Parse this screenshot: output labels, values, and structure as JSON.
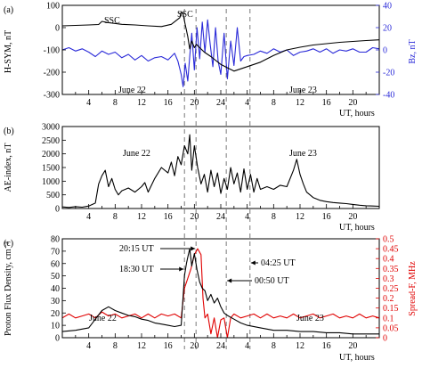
{
  "chart_data": [
    {
      "panel_label": "(a)",
      "type": "line",
      "xlabel": "UT, hours",
      "ylabel": "H-SYM, nT",
      "y2label": "Bz, nT",
      "xlim": [
        0,
        48
      ],
      "ylim": [
        -300,
        100
      ],
      "y2lim": [
        -40,
        40
      ],
      "x_tick_labels": [
        "4",
        "8",
        "12",
        "16",
        "20",
        "24",
        "4",
        "8",
        "12",
        "16",
        "20"
      ],
      "y_tick_labels": [
        "100",
        "0",
        "-100",
        "-200",
        "-300"
      ],
      "y2_tick_labels": [
        "40",
        "20",
        "0",
        "-20",
        "-40"
      ],
      "day_labels": [
        "June 22",
        "June 23"
      ],
      "annotations": [
        {
          "text": "SSC",
          "x": 5.6,
          "y": 24
        },
        {
          "text": "SSC",
          "x": 17.9,
          "y": 64
        }
      ],
      "series": [
        {
          "axis": "left",
          "color": "#000000",
          "x": [
            0,
            2,
            4,
            5.5,
            6,
            7,
            9,
            11,
            13,
            15,
            16.5,
            17.8,
            18,
            18.3,
            18.6,
            19,
            19.3,
            19.6,
            20,
            20.3,
            20.8,
            21.5,
            22.5,
            24,
            26,
            28,
            30,
            32,
            34,
            36,
            38,
            40,
            42,
            44,
            46,
            48
          ],
          "y": [
            8,
            10,
            12,
            14,
            28,
            22,
            15,
            12,
            8,
            5,
            15,
            45,
            70,
            60,
            15,
            -40,
            -95,
            -60,
            -90,
            -75,
            -90,
            -110,
            -130,
            -165,
            -195,
            -175,
            -155,
            -125,
            -100,
            -88,
            -78,
            -72,
            -66,
            -62,
            -58,
            -55
          ]
        },
        {
          "axis": "right",
          "color": "#2a2ad8",
          "x": [
            0,
            1,
            2,
            3,
            4,
            5,
            6,
            7,
            8,
            9,
            10,
            11,
            12,
            13,
            14,
            15,
            16,
            17,
            17.5,
            18,
            18.3,
            18.6,
            19,
            19.3,
            19.6,
            20,
            20.4,
            20.8,
            21.2,
            21.6,
            22,
            22.4,
            22.8,
            23.2,
            23.6,
            24,
            24.5,
            25,
            25.5,
            26,
            26.5,
            27,
            27.5,
            28,
            29,
            30,
            31,
            32,
            33,
            34,
            35,
            36,
            37,
            38,
            39,
            40,
            41,
            42,
            43,
            44,
            45,
            46,
            47,
            48
          ],
          "y": [
            0,
            2,
            -1,
            1,
            -2,
            -6,
            -1,
            -4,
            -2,
            -7,
            -4,
            -9,
            -5,
            -10,
            -7,
            -6,
            -9,
            -3,
            -10,
            -22,
            -33,
            -12,
            -28,
            -6,
            15,
            -18,
            20,
            -8,
            25,
            -2,
            27,
            5,
            -15,
            20,
            -10,
            -22,
            15,
            -26,
            8,
            -14,
            20,
            -10,
            -6,
            -5,
            -4,
            -1,
            -3,
            1,
            -2,
            0,
            -5,
            -2,
            -1,
            1,
            -2,
            1,
            -3,
            0,
            -1,
            1,
            -2,
            -2,
            2,
            1
          ]
        }
      ]
    },
    {
      "panel_label": "(b)",
      "type": "line",
      "xlabel": "UT, hours",
      "ylabel": "AE-index, nT",
      "xlim": [
        0,
        48
      ],
      "ylim": [
        0,
        3000
      ],
      "x_tick_labels": [
        "4",
        "8",
        "12",
        "16",
        "20",
        "24",
        "4",
        "8",
        "12",
        "16",
        "20"
      ],
      "y_tick_labels": [
        "3000",
        "2500",
        "2000",
        "1500",
        "1000",
        "500",
        "0"
      ],
      "day_labels": [
        "June 22",
        "June 23"
      ],
      "series": [
        {
          "color": "#000000",
          "x": [
            0,
            1,
            2,
            3,
            4,
            5,
            5.5,
            6,
            6.5,
            7,
            7.5,
            8,
            8.5,
            9,
            10,
            11,
            12,
            12.5,
            13,
            14,
            15,
            16,
            16.5,
            17,
            17.5,
            18,
            18.5,
            19,
            19.3,
            19.6,
            20,
            20.5,
            21,
            21.5,
            22,
            22.5,
            23,
            23.5,
            24,
            24.5,
            25,
            25.5,
            26,
            26.5,
            27,
            27.5,
            28,
            28.5,
            29,
            29.5,
            30,
            31,
            32,
            33,
            34,
            35,
            35.5,
            36,
            36.5,
            37,
            38,
            39,
            40,
            41,
            42,
            43,
            44,
            45,
            46,
            47,
            48
          ],
          "y": [
            60,
            40,
            70,
            50,
            90,
            200,
            900,
            1200,
            1400,
            800,
            1100,
            700,
            500,
            650,
            750,
            600,
            800,
            950,
            600,
            1100,
            1500,
            1300,
            1700,
            1200,
            1900,
            1600,
            2300,
            2000,
            2700,
            1400,
            2300,
            1500,
            900,
            1250,
            600,
            1400,
            800,
            1300,
            550,
            1100,
            700,
            1500,
            900,
            1300,
            600,
            1450,
            700,
            1250,
            600,
            1100,
            700,
            800,
            700,
            850,
            800,
            1400,
            1800,
            1250,
            900,
            600,
            400,
            300,
            250,
            220,
            200,
            180,
            150,
            120,
            100,
            90,
            80
          ]
        }
      ]
    },
    {
      "panel_label": "(c)",
      "type": "line",
      "xlabel": "UT, hours",
      "ylabel": "Proton Flux Density, cm⁻³",
      "y2label": "Spread-F, MHz",
      "xlim": [
        0,
        48
      ],
      "ylim": [
        0,
        80
      ],
      "y2lim": [
        0,
        0.5
      ],
      "x_tick_labels": [
        "4",
        "8",
        "12",
        "16",
        "20",
        "24",
        "4",
        "8",
        "12",
        "16",
        "20"
      ],
      "y_tick_labels": [
        "0",
        "10",
        "20",
        "30",
        "40",
        "50",
        "60",
        "70",
        "80"
      ],
      "y2_tick_labels": [
        "0",
        "0.05",
        "0.1",
        "0.15",
        "0.2",
        "0.25",
        "0.3",
        "0.35",
        "0.4",
        "0.45",
        "0.5"
      ],
      "day_labels": [
        "June 22",
        "June 23"
      ],
      "annotations": [
        {
          "text": "20:15 UT",
          "time": 20.25
        },
        {
          "text": "18:30 UT",
          "time": 18.5
        },
        {
          "text": "04:25 UT",
          "time": 28.42
        },
        {
          "text": "00:50 UT",
          "time": 24.83
        }
      ],
      "series": [
        {
          "axis": "left",
          "color": "#000000",
          "x": [
            0,
            2,
            4,
            5,
            6,
            7,
            8,
            9,
            10,
            11,
            12,
            13,
            14,
            15,
            16,
            17,
            18,
            18.5,
            18.8,
            19,
            19.3,
            19.6,
            20,
            20.4,
            20.8,
            21.2,
            21.6,
            22,
            22.5,
            23,
            23.5,
            24,
            24.5,
            25,
            26,
            27,
            28,
            30,
            32,
            34,
            36,
            38,
            40,
            42,
            44,
            46,
            48
          ],
          "y": [
            5,
            6,
            8,
            15,
            22,
            25,
            22,
            20,
            18,
            17,
            15,
            14,
            12,
            11,
            10,
            9,
            10,
            50,
            60,
            65,
            72,
            58,
            68,
            55,
            45,
            40,
            38,
            30,
            35,
            28,
            32,
            25,
            20,
            18,
            15,
            12,
            10,
            8,
            6,
            6,
            5,
            5,
            4,
            4,
            3,
            3,
            3
          ]
        },
        {
          "axis": "right",
          "color": "#e00000",
          "x": [
            0,
            1,
            2,
            3,
            4,
            5,
            6,
            7,
            8,
            9,
            10,
            11,
            12,
            13,
            14,
            15,
            16,
            17,
            18,
            18.5,
            19,
            19.5,
            20,
            20.5,
            21,
            21.3,
            21.6,
            22,
            22.5,
            23,
            23.5,
            24,
            24.5,
            25,
            25.5,
            26,
            27,
            28,
            29,
            30,
            31,
            32,
            33,
            34,
            35,
            36,
            37,
            38,
            39,
            40,
            41,
            42,
            43,
            44,
            45,
            46,
            47,
            48
          ],
          "y": [
            0.1,
            0.12,
            0.1,
            0.11,
            0.12,
            0.1,
            0.13,
            0.11,
            0.12,
            0.1,
            0.11,
            0.12,
            0.1,
            0.12,
            0.1,
            0.12,
            0.11,
            0.12,
            0.1,
            0.25,
            0.3,
            0.35,
            0.42,
            0.45,
            0.42,
            0.2,
            0.1,
            0.12,
            0.02,
            0.1,
            0.0,
            0.09,
            0.1,
            0.0,
            0.1,
            0.12,
            0.1,
            0.11,
            0.12,
            0.1,
            0.12,
            0.1,
            0.11,
            0.1,
            0.12,
            0.1,
            0.11,
            0.12,
            0.1,
            0.11,
            0.12,
            0.1,
            0.11,
            0.1,
            0.12,
            0.1,
            0.11,
            0.1
          ]
        }
      ]
    }
  ],
  "event_times": [
    18.5,
    20.25,
    24.83,
    28.42
  ]
}
